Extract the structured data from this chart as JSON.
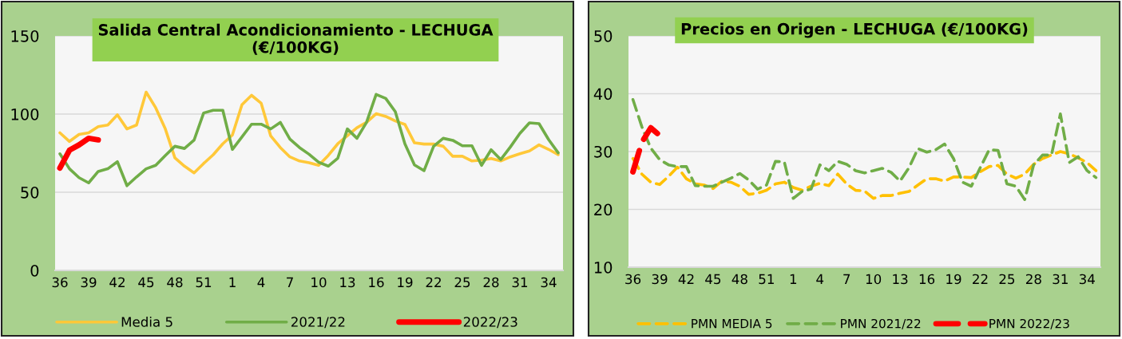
{
  "chart_data": [
    {
      "type": "line",
      "title": "Salida Central Acondicionamiento - LECHUGA\n(€/100KG)",
      "categories": [
        "36",
        null,
        null,
        "39",
        null,
        null,
        "42",
        null,
        null,
        "45",
        null,
        null,
        "48",
        null,
        null,
        "51",
        null,
        null,
        "1",
        null,
        null,
        "4",
        null,
        null,
        "7",
        null,
        null,
        "10",
        null,
        null,
        "13",
        null,
        null,
        "16",
        null,
        null,
        "19",
        null,
        null,
        "22",
        null,
        null,
        "25",
        null,
        null,
        "28",
        null,
        null,
        "31",
        null,
        null,
        "34",
        null
      ],
      "series": [
        {
          "name": "Media 5",
          "color": "#ffc839",
          "values": [
            88,
            82.5,
            87,
            88,
            92,
            93,
            99.5,
            90.5,
            93,
            114,
            104,
            90.5,
            72,
            66.7,
            62.4,
            68.4,
            74,
            81,
            86.6,
            106,
            112,
            107,
            86,
            78.6,
            72.6,
            70,
            68.9,
            67.2,
            73.5,
            81,
            86.2,
            91.3,
            94.7,
            100.2,
            98.5,
            95.6,
            93.4,
            81.6,
            80.8,
            80.8,
            79.4,
            73,
            73,
            70,
            70.5,
            71.6,
            70,
            72.6,
            74.6,
            76.4,
            80.3,
            77.4,
            74
          ]
        },
        {
          "name": "2021/22",
          "color": "#70ad47",
          "values": [
            74.6,
            65,
            59.3,
            56,
            63.3,
            65,
            69.5,
            54.2,
            59.8,
            65,
            67.2,
            73.5,
            79.4,
            78,
            83.3,
            100.7,
            102.4,
            102.4,
            77.4,
            85.4,
            93.5,
            93.5,
            90.5,
            94.7,
            84,
            78.6,
            74.3,
            69.2,
            66.7,
            71.8,
            90.5,
            84.5,
            94.7,
            112.6,
            110,
            101.5,
            81,
            67.5,
            63.8,
            79.4,
            84.5,
            83.2,
            79.7,
            79.7,
            67.2,
            77.2,
            70.9,
            78.9,
            87.6,
            94.4,
            93.9,
            83.7,
            75.2
          ]
        },
        {
          "name": "2022/23",
          "color": "#ff0000",
          "values": [
            65.5,
            76.9,
            80.3,
            84.5,
            83.5,
            null,
            null,
            null,
            null,
            null,
            null,
            null,
            null,
            null,
            null,
            null,
            null,
            null,
            null,
            null,
            null,
            null,
            null,
            null,
            null,
            null,
            null,
            null,
            null,
            null,
            null,
            null,
            null,
            null,
            null,
            null,
            null,
            null,
            null,
            null,
            null,
            null,
            null,
            null,
            null,
            null,
            null,
            null,
            null,
            null,
            null,
            null,
            null
          ]
        }
      ],
      "ylim": [
        0,
        150
      ],
      "yticks": [
        0,
        50,
        100,
        150
      ],
      "grid": "y",
      "legend": "bottom",
      "line_style": "solid"
    },
    {
      "type": "line",
      "title": "Precios en Origen - LECHUGA (€/100KG)",
      "categories": [
        "36",
        null,
        null,
        "39",
        null,
        null,
        "42",
        null,
        null,
        "45",
        null,
        null,
        "48",
        null,
        null,
        "51",
        null,
        null,
        "1",
        null,
        null,
        "4",
        null,
        null,
        "7",
        null,
        null,
        "10",
        null,
        null,
        "13",
        null,
        null,
        "16",
        null,
        null,
        "19",
        null,
        null,
        "22",
        null,
        null,
        "25",
        null,
        null,
        "28",
        null,
        null,
        "31",
        null,
        null,
        "34",
        null
      ],
      "series": [
        {
          "name": "PMN MEDIA 5",
          "color": "#ffc000",
          "values": [
            28.8,
            26.1,
            24.7,
            24.3,
            25.7,
            27.3,
            25.3,
            24.4,
            24.2,
            23.6,
            24.9,
            24.7,
            24.0,
            22.6,
            22.8,
            23.3,
            24.4,
            24.7,
            23.8,
            23.3,
            24.0,
            24.5,
            24.1,
            26.1,
            24.4,
            23.3,
            23.2,
            21.9,
            22.4,
            22.4,
            22.8,
            23.1,
            24.2,
            25.3,
            25.3,
            24.9,
            25.6,
            25.6,
            25.5,
            26.5,
            27.4,
            27.6,
            26.1,
            25.4,
            26.1,
            27.8,
            28.8,
            29.4,
            30.0,
            29.6,
            28.9,
            28.1,
            26.7
          ]
        },
        {
          "name": "PMN 2021/22",
          "color": "#70ad47",
          "values": [
            39.0,
            34.3,
            30.6,
            28.6,
            27.7,
            27.4,
            27.4,
            24.1,
            24.0,
            24.0,
            24.7,
            25.4,
            26.2,
            25.1,
            23.5,
            24.2,
            28.3,
            28.2,
            21.9,
            23.1,
            23.5,
            27.7,
            26.7,
            28.3,
            27.8,
            26.7,
            26.3,
            26.7,
            27.1,
            26.4,
            24.9,
            27.2,
            30.5,
            29.9,
            30.3,
            31.3,
            28.8,
            24.7,
            24.0,
            27.2,
            30.3,
            30.2,
            24.4,
            24.0,
            21.7,
            27.7,
            29.4,
            29.4,
            36.5,
            28.1,
            29.1,
            26.7,
            25.5
          ]
        },
        {
          "name": "PMN 2022/23",
          "color": "#ff0000",
          "values": [
            26.5,
            31.6,
            34.1,
            32.8,
            null,
            null,
            null,
            null,
            null,
            null,
            null,
            null,
            null,
            null,
            null,
            null,
            null,
            null,
            null,
            null,
            null,
            null,
            null,
            null,
            null,
            null,
            null,
            null,
            null,
            null,
            null,
            null,
            null,
            null,
            null,
            null,
            null,
            null,
            null,
            null,
            null,
            null,
            null,
            null,
            null,
            null,
            null,
            null,
            null,
            null,
            null,
            null,
            null
          ]
        }
      ],
      "ylim": [
        10,
        50
      ],
      "yticks": [
        10,
        20,
        30,
        40,
        50
      ],
      "grid": "y",
      "legend": "bottom",
      "line_style": "dashed"
    }
  ]
}
